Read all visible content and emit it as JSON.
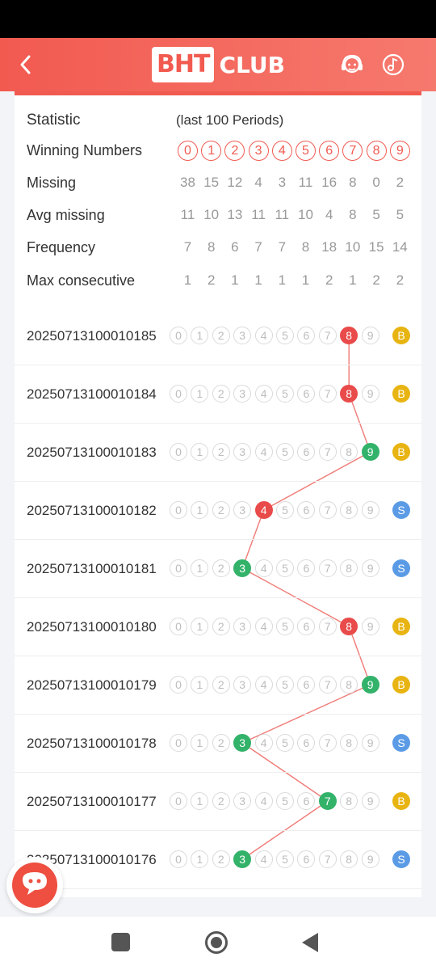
{
  "header": {
    "back_icon": "chevron-left-icon",
    "logo_box": "BHT",
    "logo_text": "CLUB",
    "support_icon": "customer-service-icon",
    "music_icon": "music-note-icon"
  },
  "stats": {
    "title": "Statistic",
    "subtitle": "(last 100 Periods)",
    "winning_label": "Winning Numbers",
    "winning_numbers": [
      "0",
      "1",
      "2",
      "3",
      "4",
      "5",
      "6",
      "7",
      "8",
      "9"
    ],
    "rows": [
      {
        "label": "Missing",
        "values": [
          "38",
          "15",
          "12",
          "4",
          "3",
          "11",
          "16",
          "8",
          "0",
          "2"
        ]
      },
      {
        "label": "Avg missing",
        "values": [
          "11",
          "10",
          "13",
          "11",
          "11",
          "10",
          "4",
          "8",
          "5",
          "5"
        ]
      },
      {
        "label": "Frequency",
        "values": [
          "7",
          "8",
          "6",
          "7",
          "7",
          "8",
          "18",
          "10",
          "15",
          "14"
        ]
      },
      {
        "label": "Max consecutive",
        "values": [
          "1",
          "2",
          "1",
          "1",
          "1",
          "1",
          "2",
          "1",
          "2",
          "2"
        ]
      }
    ]
  },
  "draws": [
    {
      "period": "20250713100010185",
      "number": 8,
      "bs": "B"
    },
    {
      "period": "20250713100010184",
      "number": 8,
      "bs": "B"
    },
    {
      "period": "20250713100010183",
      "number": 9,
      "bs": "B"
    },
    {
      "period": "20250713100010182",
      "number": 4,
      "bs": "S"
    },
    {
      "period": "20250713100010181",
      "number": 3,
      "bs": "S"
    },
    {
      "period": "20250713100010180",
      "number": 8,
      "bs": "B"
    },
    {
      "period": "20250713100010179",
      "number": 9,
      "bs": "B"
    },
    {
      "period": "20250713100010178",
      "number": 3,
      "bs": "S"
    },
    {
      "period": "20250713100010177",
      "number": 7,
      "bs": "B"
    },
    {
      "period": "20250713100010176",
      "number": 3,
      "bs": "S"
    }
  ],
  "colors": {
    "red": "#e94a4a",
    "green": "#33b26a",
    "big": "#e8b412",
    "small": "#5b9be6",
    "header": "#f25a50"
  },
  "nav": {
    "recent_icon": "square-icon",
    "home_icon": "circle-home-icon",
    "back_icon": "triangle-back-icon"
  },
  "chat_icon": "chat-bubble-icon"
}
